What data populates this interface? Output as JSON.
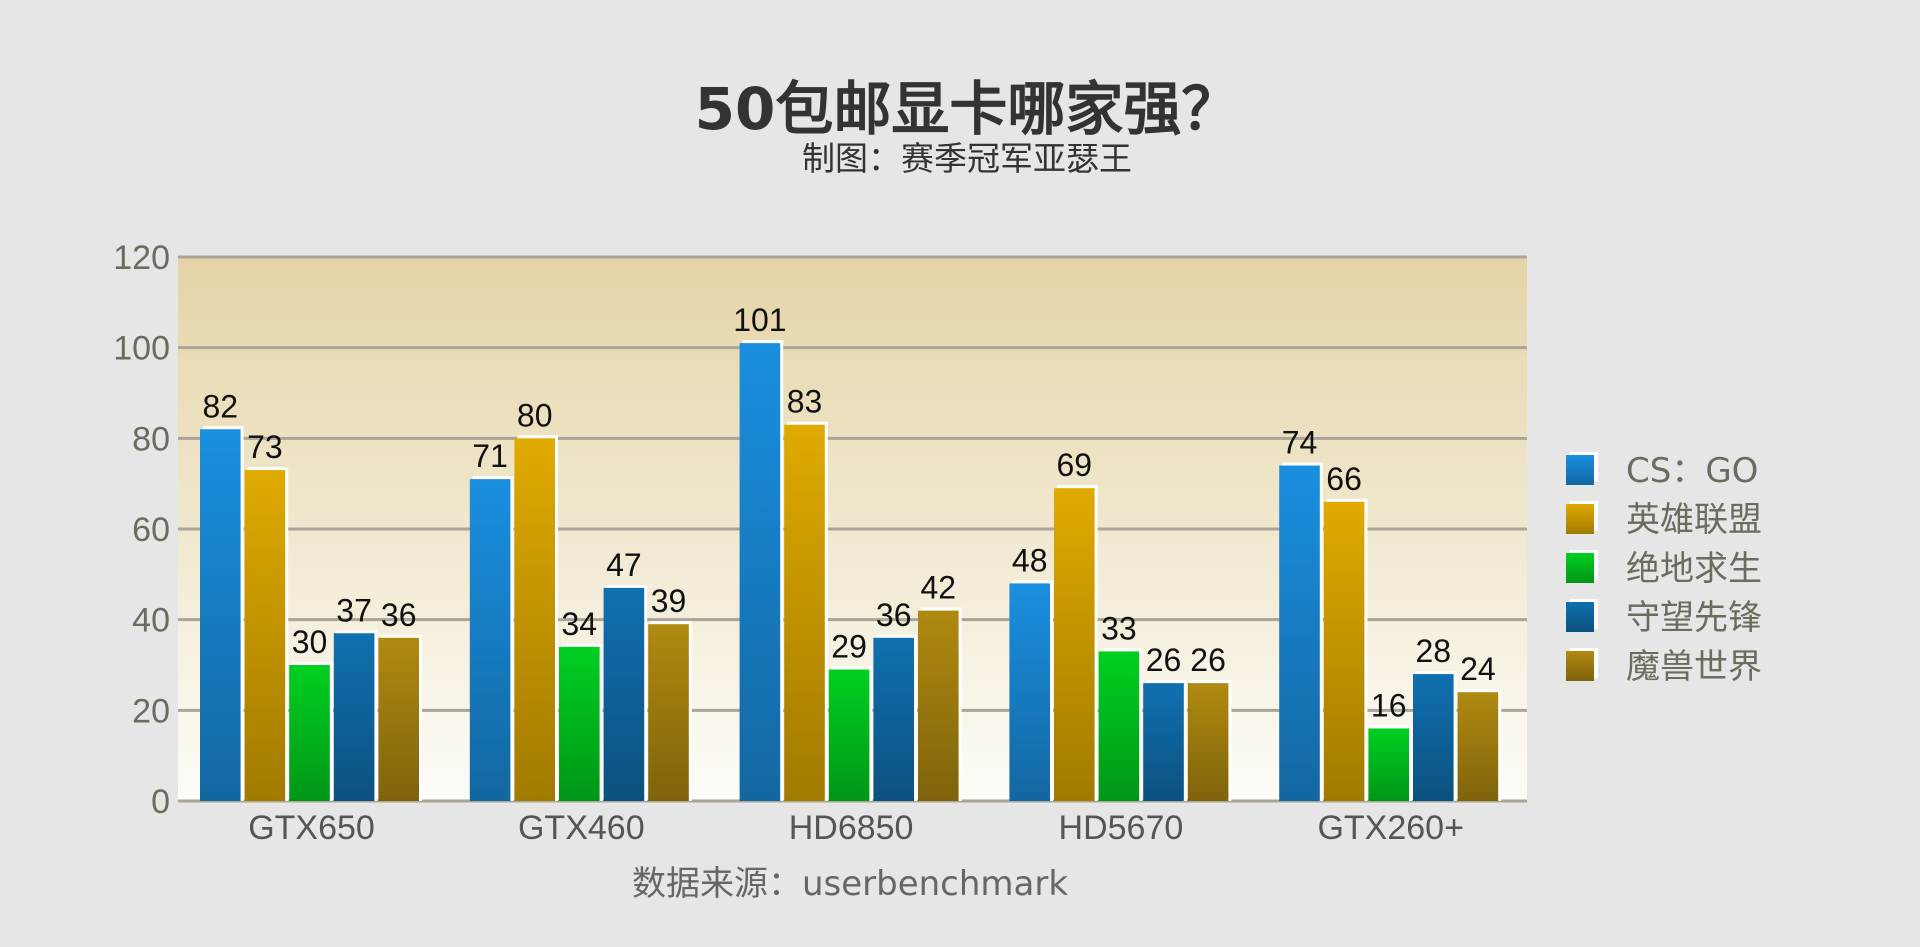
{
  "chart_data": {
    "type": "bar",
    "title": "50包邮显卡哪家强？",
    "subtitle": "制图：赛季冠军亚瑟王",
    "source": "数据来源：userbenchmark",
    "categories": [
      "GTX650",
      "GTX460",
      "HD6850",
      "HD5670",
      "GTX260+"
    ],
    "series": [
      {
        "name": "CS：GO",
        "values": [
          82,
          71,
          101,
          48,
          74
        ],
        "color": "#1a8fe0"
      },
      {
        "name": "英雄联盟",
        "values": [
          73,
          80,
          83,
          69,
          66
        ],
        "color": "#e0aa00"
      },
      {
        "name": "绝地求生",
        "values": [
          30,
          34,
          29,
          33,
          16
        ],
        "color": "#00d020"
      },
      {
        "name": "守望先锋",
        "values": [
          37,
          47,
          36,
          26,
          28
        ],
        "color": "#1070b0"
      },
      {
        "name": "魔兽世界",
        "values": [
          36,
          39,
          42,
          26,
          24
        ],
        "color": "#b08a10"
      }
    ],
    "ylim": [
      0,
      120
    ],
    "yticks": [
      0,
      20,
      40,
      60,
      80,
      100,
      120
    ],
    "grid": true,
    "legend": "right"
  }
}
